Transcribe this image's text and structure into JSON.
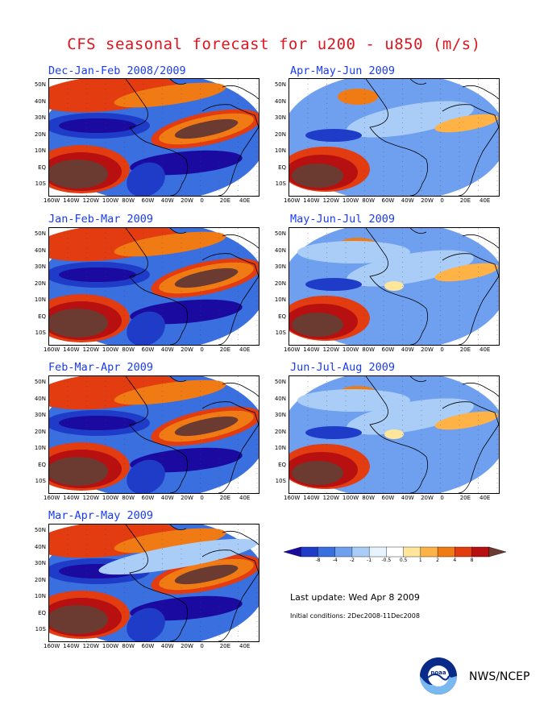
{
  "title": "CFS seasonal forecast for u200 - u850 (m/s)",
  "panels": [
    {
      "title": "Dec-Jan-Feb 2008/2009",
      "variant": 0
    },
    {
      "title": "Jan-Feb-Mar 2009",
      "variant": 1
    },
    {
      "title": "Feb-Mar-Apr 2009",
      "variant": 2
    },
    {
      "title": "Mar-Apr-May 2009",
      "variant": 3
    },
    {
      "title": "Apr-May-Jun 2009",
      "variant": 4
    },
    {
      "title": "May-Jun-Jul 2009",
      "variant": 5
    },
    {
      "title": "Jun-Jul-Aug 2009",
      "variant": 6
    }
  ],
  "lat_labels": [
    "50N",
    "40N",
    "30N",
    "20N",
    "10N",
    "EQ",
    "10S"
  ],
  "lon_labels": [
    "160W",
    "140W",
    "120W",
    "100W",
    "80W",
    "60W",
    "40W",
    "20W",
    "0",
    "20E",
    "40E"
  ],
  "colorbar": {
    "ticks": [
      "-8",
      "-4",
      "-2",
      "-1",
      "-0.5",
      "0.5",
      "1",
      "2",
      "4",
      "8"
    ],
    "colors": [
      "#1a0aa0",
      "#1f3cc8",
      "#3a6fe0",
      "#6fa0ef",
      "#a9cdf6",
      "#e6f4ff",
      "#ffffff",
      "#ffe69a",
      "#ffb347",
      "#f07b14",
      "#e23c10",
      "#b81010",
      "#6b3a30"
    ]
  },
  "last_update": "Last update: Wed Apr 8 2009",
  "initial_conditions": "Initial conditions: 2Dec2008-11Dec2008",
  "agency": "NWS/NCEP"
}
